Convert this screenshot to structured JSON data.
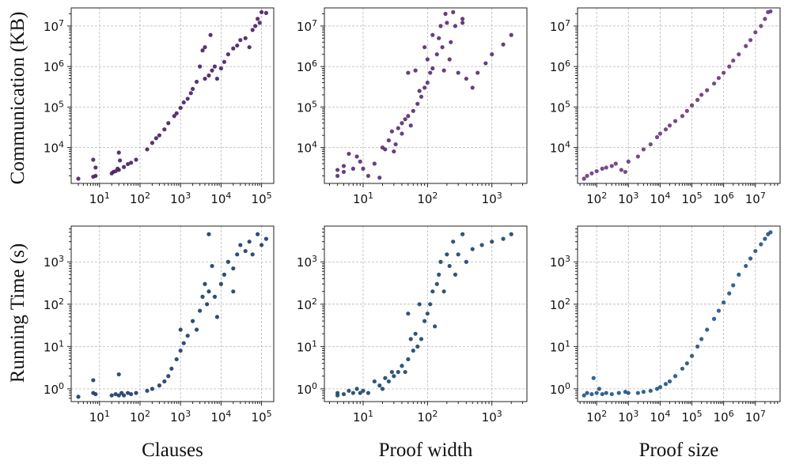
{
  "figure": {
    "ylabels": [
      "Communication (KB)",
      "Running Time (s)"
    ],
    "xlabels": [
      "Clauses",
      "Proof width",
      "Proof size"
    ]
  },
  "chart_data": [
    {
      "type": "scatter",
      "xscale": "log",
      "yscale": "log",
      "xlabel": "Clauses",
      "ylabel": "Communication (KB)",
      "xlim": [
        2,
        200000
      ],
      "ylim": [
        1300,
        28000000
      ],
      "xticks": [
        10,
        100,
        1000,
        10000,
        100000
      ],
      "xtick_labels": [
        "10^1",
        "10^2",
        "10^3",
        "10^4",
        "10^5"
      ],
      "yticks": [
        10000,
        100000,
        1000000,
        10000000
      ],
      "ytick_labels": [
        "10^4",
        "10^5",
        "10^6",
        "10^7"
      ],
      "color": "#4b2364",
      "points": [
        [
          3,
          1700
        ],
        [
          7,
          1900
        ],
        [
          7,
          5000
        ],
        [
          8,
          3200
        ],
        [
          8,
          2000
        ],
        [
          20,
          2300
        ],
        [
          22,
          2500
        ],
        [
          25,
          2600
        ],
        [
          28,
          3000
        ],
        [
          30,
          2800
        ],
        [
          30,
          7500
        ],
        [
          32,
          4800
        ],
        [
          40,
          3300
        ],
        [
          50,
          3900
        ],
        [
          60,
          4200
        ],
        [
          80,
          5000
        ],
        [
          150,
          9000
        ],
        [
          200,
          13000
        ],
        [
          250,
          17000
        ],
        [
          300,
          20000
        ],
        [
          400,
          28000
        ],
        [
          500,
          40000
        ],
        [
          700,
          60000
        ],
        [
          800,
          70000
        ],
        [
          1000,
          95000
        ],
        [
          1200,
          130000
        ],
        [
          1500,
          160000
        ],
        [
          1800,
          220000
        ],
        [
          2000,
          280000
        ],
        [
          2500,
          420000
        ],
        [
          3000,
          1000000
        ],
        [
          3500,
          2500000
        ],
        [
          4000,
          500000
        ],
        [
          4000,
          3000000
        ],
        [
          5000,
          600000
        ],
        [
          5500,
          6000000
        ],
        [
          6000,
          800000
        ],
        [
          7000,
          1000000
        ],
        [
          8000,
          500000
        ],
        [
          10000,
          900000
        ],
        [
          12000,
          1300000
        ],
        [
          15000,
          2000000
        ],
        [
          20000,
          2800000
        ],
        [
          25000,
          3300000
        ],
        [
          30000,
          4500000
        ],
        [
          40000,
          5000000
        ],
        [
          50000,
          3000000
        ],
        [
          60000,
          8000000
        ],
        [
          70000,
          10000000
        ],
        [
          80000,
          15000000
        ],
        [
          90000,
          12000000
        ],
        [
          100000,
          22000000
        ],
        [
          130000,
          21000000
        ]
      ]
    },
    {
      "type": "scatter",
      "xscale": "log",
      "yscale": "log",
      "xlabel": "Proof width",
      "ylabel": "Communication (KB)",
      "xlim": [
        2.5,
        3500
      ],
      "ylim": [
        1300,
        28000000
      ],
      "xticks": [
        10,
        100,
        1000
      ],
      "xtick_labels": [
        "10^1",
        "10^2",
        "10^3"
      ],
      "yticks": [
        10000,
        100000,
        1000000,
        10000000
      ],
      "ytick_labels": [
        "10^4",
        "10^5",
        "10^6",
        "10^7"
      ],
      "color": "#5b2f72",
      "points": [
        [
          4,
          2000
        ],
        [
          4,
          2800
        ],
        [
          5,
          3500
        ],
        [
          5,
          2500
        ],
        [
          6,
          7000
        ],
        [
          7,
          3000
        ],
        [
          8,
          6000
        ],
        [
          9,
          4500
        ],
        [
          10,
          3000
        ],
        [
          12,
          2000
        ],
        [
          15,
          4000
        ],
        [
          18,
          1800
        ],
        [
          20,
          10000
        ],
        [
          22,
          9000
        ],
        [
          25,
          15000
        ],
        [
          28,
          25000
        ],
        [
          30,
          8000
        ],
        [
          32,
          12000
        ],
        [
          35,
          30000
        ],
        [
          40,
          40000
        ],
        [
          40,
          22000
        ],
        [
          45,
          50000
        ],
        [
          50,
          60000
        ],
        [
          50,
          700000
        ],
        [
          55,
          35000
        ],
        [
          60,
          80000
        ],
        [
          65,
          800000
        ],
        [
          70,
          120000
        ],
        [
          75,
          250000
        ],
        [
          80,
          180000
        ],
        [
          90,
          300000
        ],
        [
          90,
          3000000
        ],
        [
          100,
          400000
        ],
        [
          100,
          1500000
        ],
        [
          110,
          700000
        ],
        [
          120,
          900000
        ],
        [
          120,
          6000000
        ],
        [
          140,
          2000000
        ],
        [
          150,
          5000000
        ],
        [
          160,
          10000000
        ],
        [
          170,
          3000000
        ],
        [
          180,
          800000
        ],
        [
          190,
          20000000
        ],
        [
          200,
          12000000
        ],
        [
          220,
          1500000
        ],
        [
          230,
          4000000
        ],
        [
          250,
          22000000
        ],
        [
          270,
          10000000
        ],
        [
          300,
          700000
        ],
        [
          350,
          12000000
        ],
        [
          350,
          15000000
        ],
        [
          400,
          500000
        ],
        [
          500,
          300000
        ],
        [
          600,
          700000
        ],
        [
          800,
          1200000
        ],
        [
          1000,
          2000000
        ],
        [
          1500,
          3500000
        ],
        [
          2000,
          6000000
        ]
      ]
    },
    {
      "type": "scatter",
      "xscale": "log",
      "yscale": "log",
      "xlabel": "Proof size",
      "ylabel": "Communication (KB)",
      "xlim": [
        25,
        60000000
      ],
      "ylim": [
        1300,
        28000000
      ],
      "xticks": [
        100,
        1000,
        10000,
        100000,
        1000000,
        10000000
      ],
      "xtick_labels": [
        "10^2",
        "10^3",
        "10^4",
        "10^5",
        "10^6",
        "10^7"
      ],
      "yticks": [
        10000,
        100000,
        1000000,
        10000000
      ],
      "ytick_labels": [
        "10^4",
        "10^5",
        "10^6",
        "10^7"
      ],
      "color": "#6b3b7e",
      "points": [
        [
          40,
          1700
        ],
        [
          50,
          2000
        ],
        [
          70,
          2300
        ],
        [
          100,
          2600
        ],
        [
          150,
          3000
        ],
        [
          200,
          3200
        ],
        [
          300,
          3500
        ],
        [
          400,
          4000
        ],
        [
          600,
          2800
        ],
        [
          800,
          2500
        ],
        [
          1000,
          4500
        ],
        [
          2000,
          6000
        ],
        [
          3000,
          9000
        ],
        [
          5000,
          12000
        ],
        [
          8000,
          18000
        ],
        [
          10000,
          22000
        ],
        [
          15000,
          28000
        ],
        [
          20000,
          35000
        ],
        [
          30000,
          45000
        ],
        [
          50000,
          60000
        ],
        [
          70000,
          80000
        ],
        [
          100000,
          110000
        ],
        [
          150000,
          150000
        ],
        [
          200000,
          200000
        ],
        [
          300000,
          260000
        ],
        [
          500000,
          380000
        ],
        [
          700000,
          520000
        ],
        [
          1000000,
          700000
        ],
        [
          1500000,
          1000000
        ],
        [
          2000000,
          1400000
        ],
        [
          3000000,
          2000000
        ],
        [
          5000000,
          3200000
        ],
        [
          7000000,
          4500000
        ],
        [
          10000000,
          7000000
        ],
        [
          15000000,
          10000000
        ],
        [
          20000000,
          15000000
        ],
        [
          25000000,
          22000000
        ],
        [
          30000000,
          23000000
        ]
      ]
    },
    {
      "type": "scatter",
      "xscale": "log",
      "yscale": "log",
      "xlabel": "Clauses",
      "ylabel": "Running Time (s)",
      "xlim": [
        2,
        200000
      ],
      "ylim": [
        0.5,
        7000
      ],
      "xticks": [
        10,
        100,
        1000,
        10000,
        100000
      ],
      "xtick_labels": [
        "10^1",
        "10^2",
        "10^3",
        "10^4",
        "10^5"
      ],
      "yticks": [
        1,
        10,
        100,
        1000
      ],
      "ytick_labels": [
        "10^0",
        "10^1",
        "10^2",
        "10^3"
      ],
      "color": "#1e3e6c",
      "points": [
        [
          3,
          0.65
        ],
        [
          7,
          0.8
        ],
        [
          7,
          1.6
        ],
        [
          8,
          0.75
        ],
        [
          20,
          0.7
        ],
        [
          25,
          0.75
        ],
        [
          30,
          0.7
        ],
        [
          30,
          2.2
        ],
        [
          35,
          0.8
        ],
        [
          40,
          0.7
        ],
        [
          50,
          0.8
        ],
        [
          60,
          0.75
        ],
        [
          80,
          0.8
        ],
        [
          150,
          0.9
        ],
        [
          200,
          1.0
        ],
        [
          300,
          1.2
        ],
        [
          400,
          1.5
        ],
        [
          500,
          2.0
        ],
        [
          600,
          3.0
        ],
        [
          800,
          5.0
        ],
        [
          1000,
          8.0
        ],
        [
          1000,
          25
        ],
        [
          1200,
          12
        ],
        [
          1500,
          18
        ],
        [
          2000,
          40
        ],
        [
          2500,
          25
        ],
        [
          3000,
          70
        ],
        [
          3500,
          150
        ],
        [
          4000,
          300
        ],
        [
          4500,
          100
        ],
        [
          5000,
          4500
        ],
        [
          5000,
          200
        ],
        [
          6000,
          800
        ],
        [
          7000,
          150
        ],
        [
          8000,
          50
        ],
        [
          10000,
          300
        ],
        [
          12000,
          500
        ],
        [
          15000,
          1000
        ],
        [
          20000,
          700
        ],
        [
          20000,
          200
        ],
        [
          25000,
          1500
        ],
        [
          30000,
          2500
        ],
        [
          40000,
          1800
        ],
        [
          50000,
          3000
        ],
        [
          60000,
          1500
        ],
        [
          80000,
          4500
        ],
        [
          100000,
          2500
        ],
        [
          130000,
          3500
        ]
      ]
    },
    {
      "type": "scatter",
      "xscale": "log",
      "yscale": "log",
      "xlabel": "Proof width",
      "ylabel": "Running Time (s)",
      "xlim": [
        2.5,
        3500
      ],
      "ylim": [
        0.5,
        7000
      ],
      "xticks": [
        10,
        100,
        1000
      ],
      "xtick_labels": [
        "10^1",
        "10^2",
        "10^3"
      ],
      "yticks": [
        1,
        10,
        100,
        1000
      ],
      "ytick_labels": [
        "10^0",
        "10^1",
        "10^2",
        "10^3"
      ],
      "color": "#1f466f",
      "points": [
        [
          4,
          0.7
        ],
        [
          4,
          0.8
        ],
        [
          5,
          0.75
        ],
        [
          6,
          0.9
        ],
        [
          7,
          0.8
        ],
        [
          8,
          1.0
        ],
        [
          9,
          0.8
        ],
        [
          10,
          0.9
        ],
        [
          12,
          0.8
        ],
        [
          15,
          1.5
        ],
        [
          18,
          1.2
        ],
        [
          20,
          1.0
        ],
        [
          22,
          1.8
        ],
        [
          25,
          1.5
        ],
        [
          28,
          2.5
        ],
        [
          30,
          2.0
        ],
        [
          35,
          2.5
        ],
        [
          40,
          3.5
        ],
        [
          45,
          2.5
        ],
        [
          50,
          5.0
        ],
        [
          50,
          60
        ],
        [
          55,
          15
        ],
        [
          60,
          8.0
        ],
        [
          65,
          20
        ],
        [
          70,
          10
        ],
        [
          75,
          100
        ],
        [
          80,
          15
        ],
        [
          90,
          40
        ],
        [
          100,
          60
        ],
        [
          110,
          100
        ],
        [
          120,
          200
        ],
        [
          130,
          30
        ],
        [
          140,
          300
        ],
        [
          150,
          500
        ],
        [
          160,
          1000
        ],
        [
          180,
          200
        ],
        [
          200,
          1500
        ],
        [
          220,
          800
        ],
        [
          250,
          3000
        ],
        [
          270,
          500
        ],
        [
          300,
          1500
        ],
        [
          350,
          4500
        ],
        [
          400,
          1000
        ],
        [
          500,
          2000
        ],
        [
          700,
          2500
        ],
        [
          1000,
          3000
        ],
        [
          1500,
          3500
        ],
        [
          2000,
          4500
        ]
      ]
    },
    {
      "type": "scatter",
      "xscale": "log",
      "yscale": "log",
      "xlabel": "Proof size",
      "ylabel": "Running Time (s)",
      "xlim": [
        25,
        60000000
      ],
      "ylim": [
        0.5,
        7000
      ],
      "xticks": [
        100,
        1000,
        10000,
        100000,
        1000000,
        10000000
      ],
      "xtick_labels": [
        "10^2",
        "10^3",
        "10^4",
        "10^5",
        "10^6",
        "10^7"
      ],
      "yticks": [
        1,
        10,
        100,
        1000
      ],
      "ytick_labels": [
        "10^0",
        "10^1",
        "10^2",
        "10^3"
      ],
      "color": "#23568a",
      "points": [
        [
          40,
          0.7
        ],
        [
          50,
          0.8
        ],
        [
          70,
          0.75
        ],
        [
          80,
          1.8
        ],
        [
          100,
          0.8
        ],
        [
          120,
          1.0
        ],
        [
          150,
          0.75
        ],
        [
          200,
          0.8
        ],
        [
          300,
          0.75
        ],
        [
          500,
          0.8
        ],
        [
          800,
          0.85
        ],
        [
          1000,
          0.8
        ],
        [
          2000,
          0.8
        ],
        [
          3000,
          0.85
        ],
        [
          5000,
          0.9
        ],
        [
          8000,
          1.0
        ],
        [
          10000,
          1.1
        ],
        [
          15000,
          1.3
        ],
        [
          20000,
          1.5
        ],
        [
          30000,
          2.0
        ],
        [
          50000,
          3.0
        ],
        [
          70000,
          4.0
        ],
        [
          100000,
          6.0
        ],
        [
          150000,
          10
        ],
        [
          200000,
          15
        ],
        [
          300000,
          25
        ],
        [
          500000,
          45
        ],
        [
          700000,
          70
        ],
        [
          1000000,
          110
        ],
        [
          1500000,
          180
        ],
        [
          2000000,
          280
        ],
        [
          3000000,
          500
        ],
        [
          5000000,
          800
        ],
        [
          7000000,
          1200
        ],
        [
          10000000,
          1800
        ],
        [
          15000000,
          2600
        ],
        [
          20000000,
          3500
        ],
        [
          25000000,
          4500
        ],
        [
          30000000,
          5000
        ]
      ]
    }
  ]
}
